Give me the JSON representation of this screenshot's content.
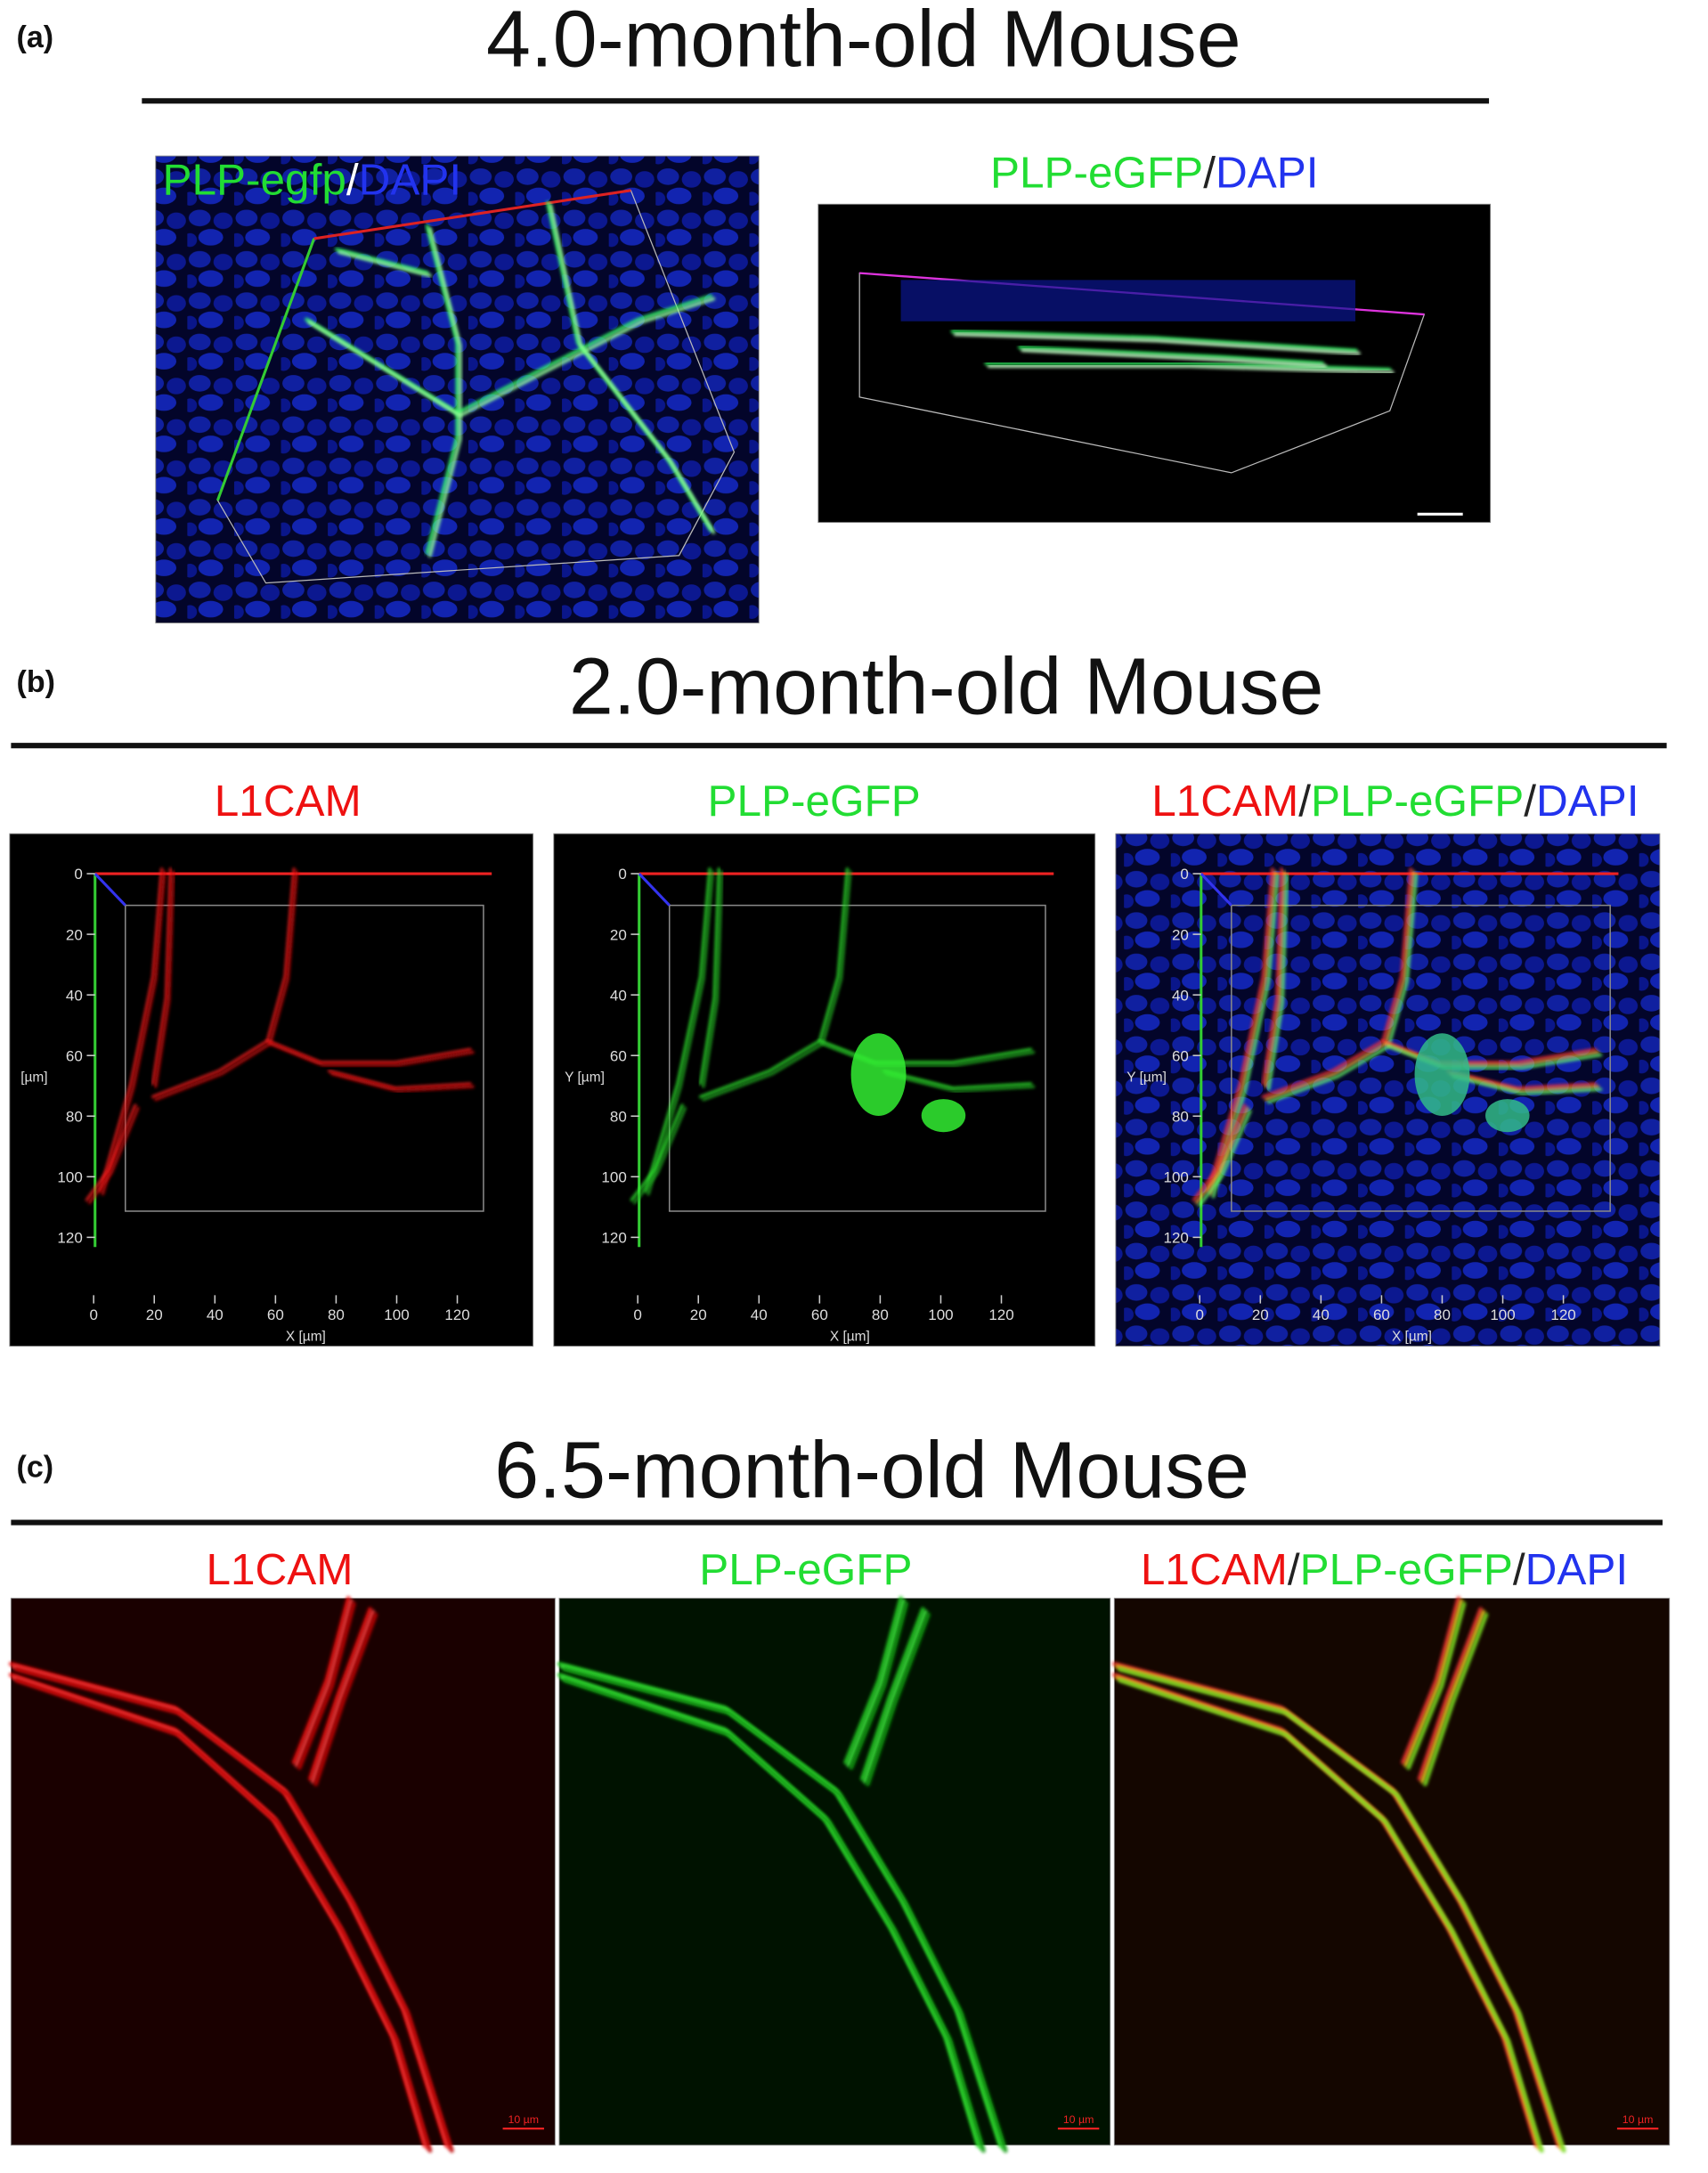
{
  "panels": [
    {
      "label": "(a)",
      "title": "4.0-month-old Mouse",
      "images": [
        {
          "caption": [
            {
              "text": "PLP-egfp",
              "color": "#22dd33"
            },
            {
              "text": "/",
              "color": "#ffffff"
            },
            {
              "text": "DAPI",
              "color": "#2233ee"
            }
          ]
        },
        {
          "caption": [
            {
              "text": "PLP-eGFP",
              "color": "#22dd33"
            },
            {
              "text": "/",
              "color": "#222222"
            },
            {
              "text": "DAPI",
              "color": "#2233ee"
            }
          ]
        }
      ]
    },
    {
      "label": "(b)",
      "title": "2.0-month-old Mouse",
      "xticks": [
        0,
        20,
        40,
        60,
        80,
        100,
        120
      ],
      "yticks": [
        0,
        20,
        40,
        60,
        80,
        100,
        120
      ],
      "images": [
        {
          "caption": [
            {
              "text": "L1CAM",
              "color": "#ee1111"
            }
          ],
          "y_label": "[µm]",
          "x_label": "X [µm]"
        },
        {
          "caption": [
            {
              "text": "PLP-eGFP",
              "color": "#22dd33"
            }
          ],
          "y_label": "Y [µm]",
          "x_label": "X [µm]"
        },
        {
          "caption": [
            {
              "text": "L1CAM",
              "color": "#ee1111"
            },
            {
              "text": "/",
              "color": "#222222"
            },
            {
              "text": "PLP-eGFP",
              "color": "#22dd33"
            },
            {
              "text": "/",
              "color": "#222222"
            },
            {
              "text": "DAPI",
              "color": "#2233ee"
            }
          ],
          "y_label": "Y [µm]",
          "x_label": "X [µm]"
        }
      ]
    },
    {
      "label": "(c)",
      "title": "6.5-month-old Mouse",
      "images": [
        {
          "caption": [
            {
              "text": "L1CAM",
              "color": "#ee1111"
            }
          ],
          "scale_bar": "10 µm"
        },
        {
          "caption": [
            {
              "text": "PLP-eGFP",
              "color": "#22dd33"
            }
          ],
          "scale_bar": "10 µm"
        },
        {
          "caption": [
            {
              "text": "L1CAM",
              "color": "#ee1111"
            },
            {
              "text": "/",
              "color": "#222222"
            },
            {
              "text": "PLP-eGFP",
              "color": "#22dd33"
            },
            {
              "text": "/",
              "color": "#222222"
            },
            {
              "text": "DAPI",
              "color": "#2233ee"
            }
          ],
          "scale_bar": "10 µm"
        }
      ]
    }
  ]
}
